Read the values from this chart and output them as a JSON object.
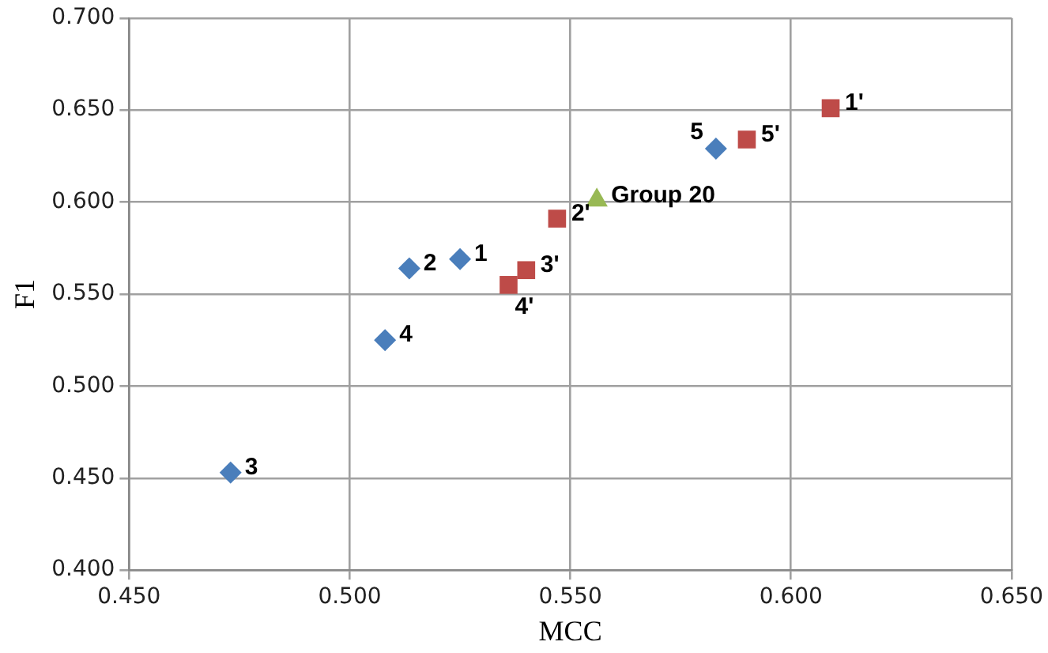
{
  "chart_data": {
    "type": "scatter",
    "xlabel": "MCC",
    "ylabel": "F1",
    "series": [
      {
        "color": "#4a7ebb",
        "marker": "diamond",
        "x": [
          0.525,
          0.5135,
          0.473,
          0.508,
          0.583
        ],
        "values": [
          0.569,
          0.564,
          0.453,
          0.525,
          0.629
        ]
      },
      {
        "color": "#be4b48",
        "marker": "square",
        "x": [
          0.609,
          0.547,
          0.54,
          0.536,
          0.59
        ],
        "values": [
          0.651,
          0.591,
          0.563,
          0.555,
          0.634
        ]
      },
      {
        "color": "#98b954",
        "marker": "triangle",
        "x": [
          0.556
        ],
        "values": [
          0.601
        ]
      }
    ],
    "xlim": [
      0.45,
      0.65
    ],
    "ylim": [
      0.4,
      0.7
    ],
    "xticks": [
      {
        "value": 0.45,
        "label": "0.450"
      },
      {
        "value": 0.5,
        "label": "0.500"
      },
      {
        "value": 0.55,
        "label": "0.550"
      },
      {
        "value": 0.6,
        "label": "0.600"
      },
      {
        "value": 0.65,
        "label": "0.650"
      }
    ],
    "yticks": [
      {
        "value": 0.4,
        "label": "0.400"
      },
      {
        "value": 0.45,
        "label": "0.450"
      },
      {
        "value": 0.5,
        "label": "0.500"
      },
      {
        "value": 0.55,
        "label": "0.550"
      },
      {
        "value": 0.6,
        "label": "0.600"
      },
      {
        "value": 0.65,
        "label": "0.650"
      },
      {
        "value": 0.7,
        "label": "0.700"
      }
    ],
    "grid": true,
    "legend": false,
    "annotations": [
      {
        "text": "1",
        "x": 0.525,
        "y": 0.569
      },
      {
        "text": "2",
        "x": 0.5135,
        "y": 0.564
      },
      {
        "text": "3",
        "x": 0.473,
        "y": 0.453
      },
      {
        "text": "4",
        "x": 0.508,
        "y": 0.525
      },
      {
        "text": "5",
        "x": 0.583,
        "y": 0.629
      },
      {
        "text": "1'",
        "x": 0.609,
        "y": 0.651
      },
      {
        "text": "2'",
        "x": 0.547,
        "y": 0.591
      },
      {
        "text": "3'",
        "x": 0.54,
        "y": 0.563
      },
      {
        "text": "4'",
        "x": 0.536,
        "y": 0.555
      },
      {
        "text": "5'",
        "x": 0.59,
        "y": 0.634
      },
      {
        "text": "Group 20",
        "x": 0.556,
        "y": 0.601
      }
    ]
  }
}
